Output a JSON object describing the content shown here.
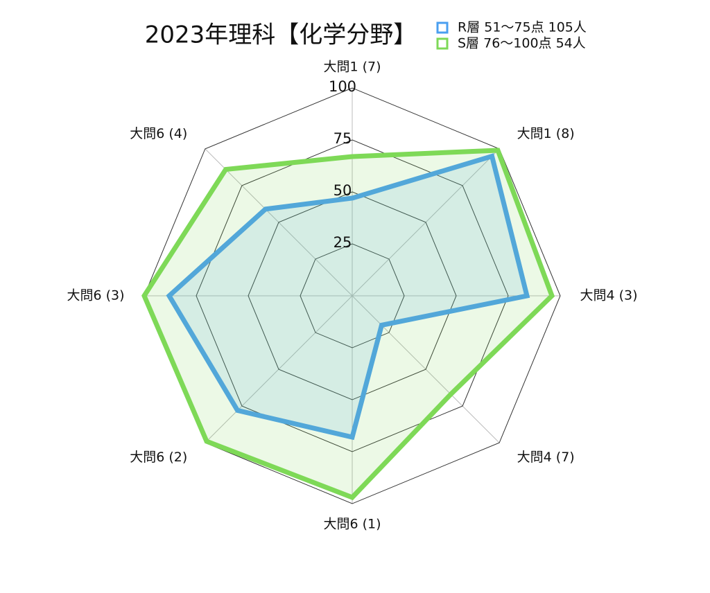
{
  "chart_data": {
    "type": "radar",
    "title": "2023年理科【化学分野】",
    "categories": [
      "大問1 (7)",
      "大問1 (8)",
      "大問4 (3)",
      "大問4 (7)",
      "大問6 (1)",
      "大問6 (2)",
      "大問6 (3)",
      "大問6 (4)"
    ],
    "series": [
      {
        "name": "R層 51〜75点 105人",
        "color": "#4a9ff0",
        "values": [
          47,
          95,
          84,
          20,
          68,
          78,
          88,
          59
        ]
      },
      {
        "name": "S層 76〜100点 54人",
        "color": "#7ed957",
        "values": [
          67,
          99,
          96,
          67,
          97,
          99,
          100,
          86
        ]
      }
    ],
    "ylim": [
      0,
      100
    ],
    "yticks": [
      25,
      50,
      75,
      100
    ],
    "grid": true,
    "legend": "top-right"
  }
}
